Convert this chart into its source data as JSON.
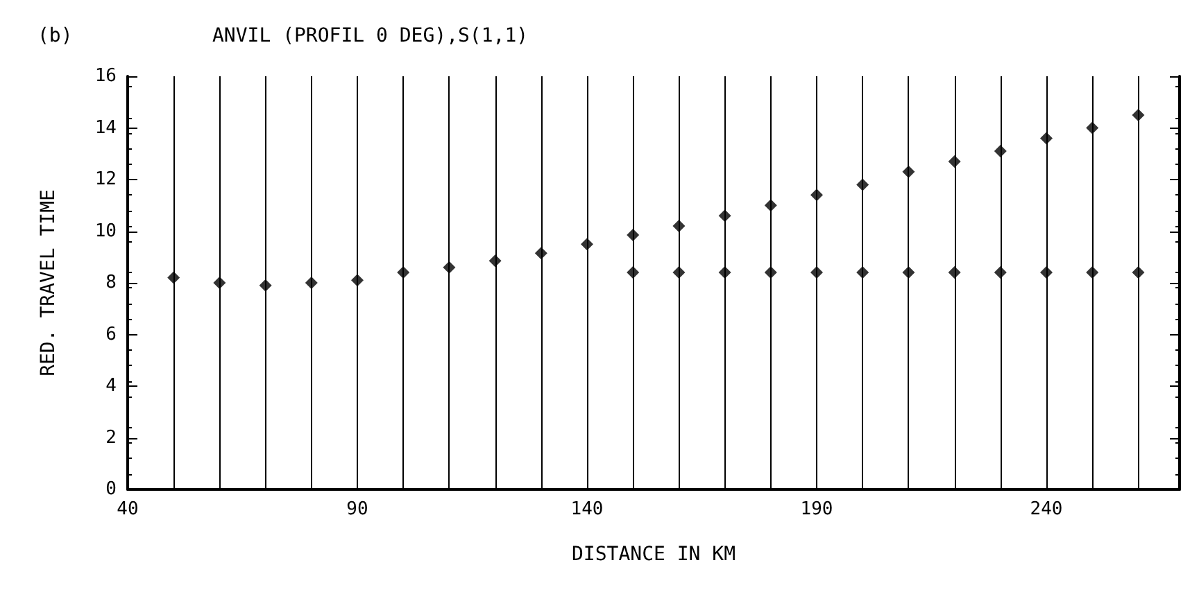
{
  "chart_data": {
    "type": "scatter",
    "title": "ANVIL (PROFIL 0 DEG),S(1,1)",
    "annotations": [
      "(b)"
    ],
    "xlabel": "DISTANCE IN KM",
    "ylabel": "RED. TRAVEL TIME",
    "xlim": [
      40,
      269
    ],
    "xticks": [
      40,
      90,
      140,
      190,
      240
    ],
    "ylim": [
      0,
      16
    ],
    "yticks": [
      0,
      2,
      4,
      6,
      8,
      10,
      12,
      14,
      16
    ],
    "grid": false,
    "marker": "diamond",
    "series": [
      {
        "color": "#000000",
        "x": [
          60,
          70,
          80,
          90,
          100,
          110,
          120,
          130,
          140,
          150,
          160,
          170,
          180,
          190,
          200,
          210,
          220,
          230,
          240,
          250,
          260
        ],
        "values": [
          8.0,
          7.9,
          8.0,
          8.1,
          8.4,
          8.6,
          8.85,
          9.15,
          9.5,
          9.85,
          10.2,
          10.6,
          11.0,
          11.4,
          11.8,
          12.3,
          12.7,
          13.1,
          13.6,
          14.0,
          14.5
        ]
      },
      {
        "color": "#000000",
        "x": [
          50,
          150,
          160,
          170,
          180,
          190,
          200,
          210,
          220,
          230,
          240,
          250,
          260
        ],
        "values": [
          8.2,
          8.4,
          8.4,
          8.4,
          8.4,
          8.4,
          8.4,
          8.4,
          8.4,
          8.4,
          8.4,
          8.4,
          8.4
        ]
      }
    ],
    "ref_lines": [
      {
        "axis": "x",
        "value": 50
      },
      {
        "axis": "x",
        "value": 60
      },
      {
        "axis": "x",
        "value": 70
      },
      {
        "axis": "x",
        "value": 80
      },
      {
        "axis": "x",
        "value": 90
      },
      {
        "axis": "x",
        "value": 100
      },
      {
        "axis": "x",
        "value": 110
      },
      {
        "axis": "x",
        "value": 120
      },
      {
        "axis": "x",
        "value": 130
      },
      {
        "axis": "x",
        "value": 140
      },
      {
        "axis": "x",
        "value": 150
      },
      {
        "axis": "x",
        "value": 160
      },
      {
        "axis": "x",
        "value": 170
      },
      {
        "axis": "x",
        "value": 180
      },
      {
        "axis": "x",
        "value": 190
      },
      {
        "axis": "x",
        "value": 200
      },
      {
        "axis": "x",
        "value": 210
      },
      {
        "axis": "x",
        "value": 220
      },
      {
        "axis": "x",
        "value": 230
      },
      {
        "axis": "x",
        "value": 240
      },
      {
        "axis": "x",
        "value": 250
      },
      {
        "axis": "x",
        "value": 260
      }
    ]
  }
}
